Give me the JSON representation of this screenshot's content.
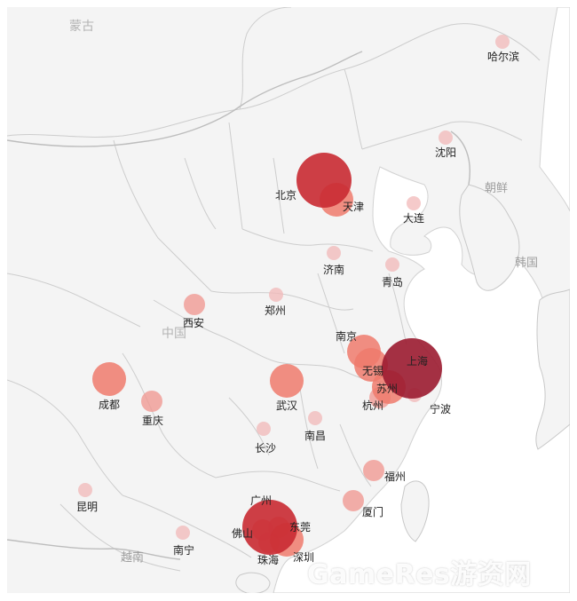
{
  "regions": {
    "mongolia": "蒙古",
    "china": "中国",
    "korea_north": "朝鲜",
    "korea_south": "韩国",
    "vietnam": "越南"
  },
  "cities": [
    {
      "id": "harbin",
      "name": "哈尔滨",
      "level": 1
    },
    {
      "id": "shenyang",
      "name": "沈阳",
      "level": 1
    },
    {
      "id": "beijing",
      "name": "北京",
      "level": 5
    },
    {
      "id": "tianjin",
      "name": "天津",
      "level": 3
    },
    {
      "id": "dalian",
      "name": "大连",
      "level": 1
    },
    {
      "id": "jinan",
      "name": "济南",
      "level": 1
    },
    {
      "id": "qingdao",
      "name": "青岛",
      "level": 1
    },
    {
      "id": "zhengzhou",
      "name": "郑州",
      "level": 1
    },
    {
      "id": "xian",
      "name": "西安",
      "level": 2
    },
    {
      "id": "nanjing",
      "name": "南京",
      "level": 3
    },
    {
      "id": "wuxi",
      "name": "无锡",
      "level": 3
    },
    {
      "id": "shanghai",
      "name": "上海",
      "level": 6
    },
    {
      "id": "suzhou",
      "name": "苏州",
      "level": 3
    },
    {
      "id": "ningbo",
      "name": "宁波",
      "level": 1
    },
    {
      "id": "hangzhou",
      "name": "杭州",
      "level": 2
    },
    {
      "id": "chengdu",
      "name": "成都",
      "level": 3
    },
    {
      "id": "chongqing",
      "name": "重庆",
      "level": 2
    },
    {
      "id": "wuhan",
      "name": "武汉",
      "level": 3
    },
    {
      "id": "changsha",
      "name": "长沙",
      "level": 1
    },
    {
      "id": "nanchang",
      "name": "南昌",
      "level": 1
    },
    {
      "id": "fuzhou",
      "name": "福州",
      "level": 2
    },
    {
      "id": "xiamen",
      "name": "厦门",
      "level": 2
    },
    {
      "id": "kunming",
      "name": "昆明",
      "level": 1
    },
    {
      "id": "nanning",
      "name": "南宁",
      "level": 1
    },
    {
      "id": "guangzhou",
      "name": "广州",
      "level": 5
    },
    {
      "id": "foshan",
      "name": "佛山",
      "level": 2
    },
    {
      "id": "dongguan",
      "name": "东莞",
      "level": 2
    },
    {
      "id": "zhuhai",
      "name": "珠海",
      "level": 2
    },
    {
      "id": "shenzhen",
      "name": "深圳",
      "level": 3
    }
  ],
  "colors": {
    "level1": "#f2b8b8",
    "level2": "#f09a93",
    "level3": "#ee7a6c",
    "level5": "#c92a32",
    "level6": "#9b1b30",
    "land": "#f4f4f4",
    "sea": "#ffffff",
    "border": "#c8c8c8"
  },
  "watermark": "GameRes游资网"
}
